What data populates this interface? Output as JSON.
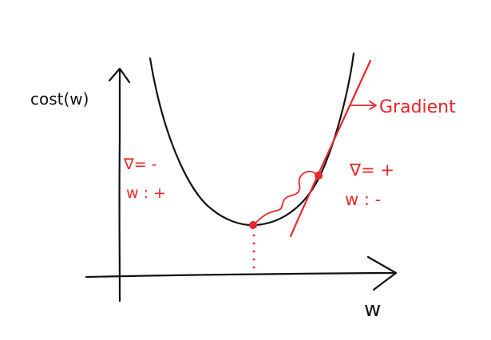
{
  "colors": {
    "ink": "#111111",
    "accent": "#e8262a"
  },
  "labels": {
    "y_axis": "cost(w)",
    "x_axis": "w",
    "gradient": "Gradient",
    "left_gradient": "∇= -",
    "left_weight": "w : +",
    "right_gradient": "∇= +",
    "right_weight": "w : -"
  }
}
